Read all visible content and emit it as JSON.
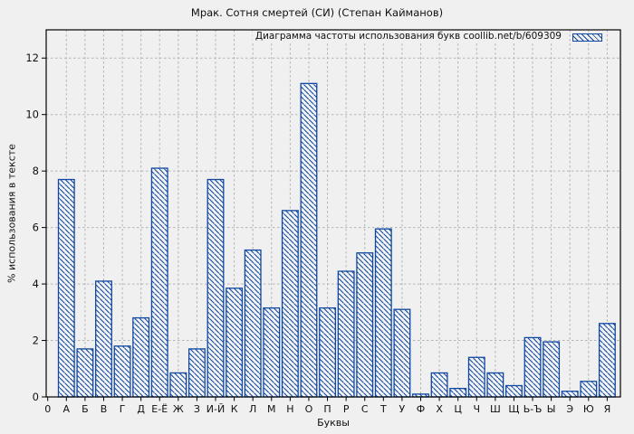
{
  "figure": {
    "background": "#f0f0f0",
    "frame_color": "#000000",
    "grid_color": "#b4b4b4",
    "text_color": "#111111"
  },
  "chart_data": {
    "type": "bar",
    "title": "Мрак. Сотня смертей (СИ) (Степан Кайманов)",
    "legend": "Диаграмма частоты использования букв coollib.net/b/609309",
    "legend_position": "top-right-inside",
    "xlabel": "Буквы",
    "ylabel": "% использования в тексте",
    "ylim": [
      0,
      13
    ],
    "yticks": [
      0,
      2,
      4,
      6,
      8,
      10,
      12
    ],
    "grid": true,
    "bar_color": "#0f47a1",
    "bar_fill": "hatched-diagonal",
    "categories": [
      "0",
      "А",
      "Б",
      "В",
      "Г",
      "Д",
      "Е-Ё",
      "Ж",
      "З",
      "И-Й",
      "К",
      "Л",
      "М",
      "Н",
      "О",
      "П",
      "Р",
      "С",
      "Т",
      "У",
      "Ф",
      "Х",
      "Ц",
      "Ч",
      "Ш",
      "Щ",
      "Ь-Ъ",
      "Ы",
      "Э",
      "Ю",
      "Я"
    ],
    "values": [
      null,
      7.7,
      1.7,
      4.1,
      1.8,
      2.8,
      8.1,
      0.85,
      1.7,
      7.7,
      3.85,
      5.2,
      3.15,
      6.6,
      11.1,
      3.15,
      4.45,
      5.1,
      5.95,
      3.1,
      0.1,
      0.85,
      0.3,
      1.4,
      0.85,
      0.4,
      2.1,
      1.95,
      0.2,
      0.55,
      2.6
    ]
  }
}
